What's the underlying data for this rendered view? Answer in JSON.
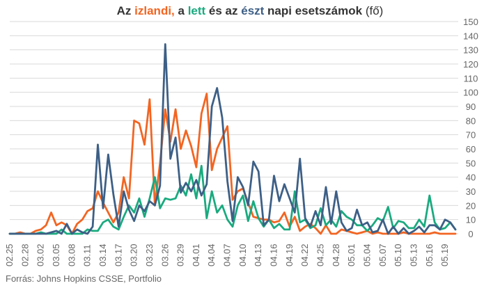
{
  "title": {
    "p1": "Az ",
    "p2": "izlandi,",
    "p3": " a ",
    "p4": "lett",
    "p5": " és az ",
    "p6": "észt",
    "p7": " napi esetszámok",
    "p8": " (fő)"
  },
  "source": "Forrás: Johns Hopkins CSSE, Portfolio",
  "colors": {
    "iceland": "#f26522",
    "latvia": "#1aaa7e",
    "estonia": "#3d5f86",
    "grid": "#d9d9d9",
    "text": "#666666"
  },
  "chart_data": {
    "type": "line",
    "title": "Az izlandi, a lett és az észt napi esetszámok (fő)",
    "ylim": [
      0,
      150
    ],
    "yticks": [
      0,
      10,
      20,
      30,
      40,
      50,
      60,
      70,
      80,
      90,
      100,
      110,
      120,
      130,
      140,
      150
    ],
    "y_axis_side": "right",
    "grid": "horizontal",
    "x": [
      "02.25",
      "02.26",
      "02.27",
      "02.28",
      "02.29",
      "03.01",
      "03.02",
      "03.03",
      "03.04",
      "03.05",
      "03.06",
      "03.07",
      "03.08",
      "03.09",
      "03.10",
      "03.11",
      "03.12",
      "03.13",
      "03.14",
      "03.15",
      "03.16",
      "03.17",
      "03.18",
      "03.19",
      "03.20",
      "03.21",
      "03.22",
      "03.23",
      "03.24",
      "03.25",
      "03.26",
      "03.27",
      "03.28",
      "03.29",
      "03.30",
      "03.31",
      "04.01",
      "04.02",
      "04.03",
      "04.04",
      "04.05",
      "04.06",
      "04.07",
      "04.08",
      "04.09",
      "04.10",
      "04.11",
      "04.12",
      "04.13",
      "04.14",
      "04.15",
      "04.16",
      "04.17",
      "04.18",
      "04.19",
      "04.20",
      "04.21",
      "04.22",
      "04.23",
      "04.24",
      "04.25",
      "04.26",
      "04.27",
      "04.28",
      "04.29",
      "04.30",
      "05.01",
      "05.02",
      "05.03",
      "05.04",
      "05.05",
      "05.06",
      "05.07",
      "05.08",
      "05.09",
      "05.10",
      "05.11",
      "05.12",
      "05.13",
      "05.14",
      "05.15",
      "05.16",
      "05.17",
      "05.18",
      "05.19",
      "05.20",
      "05.21"
    ],
    "x_tick_labels": [
      "02.25",
      "02.28",
      "03.02",
      "03.05",
      "03.08",
      "03.11",
      "03.14",
      "03.17",
      "03.20",
      "03.23",
      "03.26",
      "03.29",
      "04.01",
      "04.04",
      "04.07",
      "04.10",
      "04.13",
      "04.16",
      "04.19",
      "04.22",
      "04.25",
      "04.28",
      "05.01",
      "05.04",
      "05.07",
      "05.10",
      "05.13",
      "05.16",
      "05.19"
    ],
    "series": [
      {
        "key": "iceland",
        "values": [
          0,
          0,
          1,
          0,
          0,
          2,
          3,
          6,
          15,
          6,
          8,
          6,
          0,
          7,
          10,
          16,
          18,
          30,
          22,
          15,
          8,
          15,
          40,
          25,
          80,
          78,
          63,
          95,
          20,
          50,
          88,
          65,
          88,
          60,
          73,
          62,
          47,
          85,
          99,
          45,
          60,
          68,
          76,
          24,
          30,
          32,
          22,
          12,
          11,
          10,
          10,
          8,
          9,
          15,
          5,
          12,
          2,
          5,
          7,
          4,
          0,
          6,
          0,
          0,
          3,
          2,
          1,
          0,
          1,
          2,
          0,
          1,
          0,
          0,
          0,
          0,
          1,
          0,
          0,
          0,
          0,
          0,
          1,
          0,
          0,
          0,
          0
        ]
      },
      {
        "key": "latvia",
        "values": [
          0,
          0,
          0,
          0,
          0,
          0,
          1,
          0,
          0,
          0,
          3,
          0,
          0,
          0,
          0,
          3,
          2,
          2,
          8,
          10,
          5,
          3,
          12,
          20,
          15,
          25,
          12,
          25,
          40,
          18,
          25,
          24,
          25,
          34,
          27,
          42,
          25,
          48,
          11,
          30,
          15,
          20,
          10,
          5,
          20,
          27,
          9,
          23,
          11,
          5,
          10,
          4,
          7,
          3,
          3,
          30,
          8,
          10,
          4,
          6,
          18,
          6,
          10,
          5,
          16,
          12,
          10,
          6,
          6,
          2,
          6,
          11,
          9,
          19,
          4,
          9,
          8,
          4,
          4,
          10,
          5,
          27,
          8,
          3,
          4,
          8,
          3
        ]
      },
      {
        "key": "estonia",
        "values": [
          0,
          0,
          0,
          0,
          0,
          0,
          0,
          0,
          1,
          2,
          0,
          7,
          0,
          3,
          1,
          0,
          5,
          63,
          18,
          56,
          28,
          5,
          30,
          17,
          9,
          20,
          16,
          23,
          20,
          34,
          134,
          53,
          68,
          29,
          36,
          30,
          38,
          27,
          35,
          90,
          103,
          82,
          37,
          9,
          40,
          33,
          20,
          51,
          44,
          6,
          10,
          41,
          23,
          35,
          25,
          15,
          53,
          11,
          5,
          16,
          6,
          33,
          7,
          30,
          8,
          2,
          4,
          17,
          6,
          8,
          1,
          2,
          10,
          0,
          5,
          0,
          4,
          0,
          2,
          5,
          1,
          6,
          6,
          3,
          10,
          8,
          3
        ]
      }
    ]
  }
}
